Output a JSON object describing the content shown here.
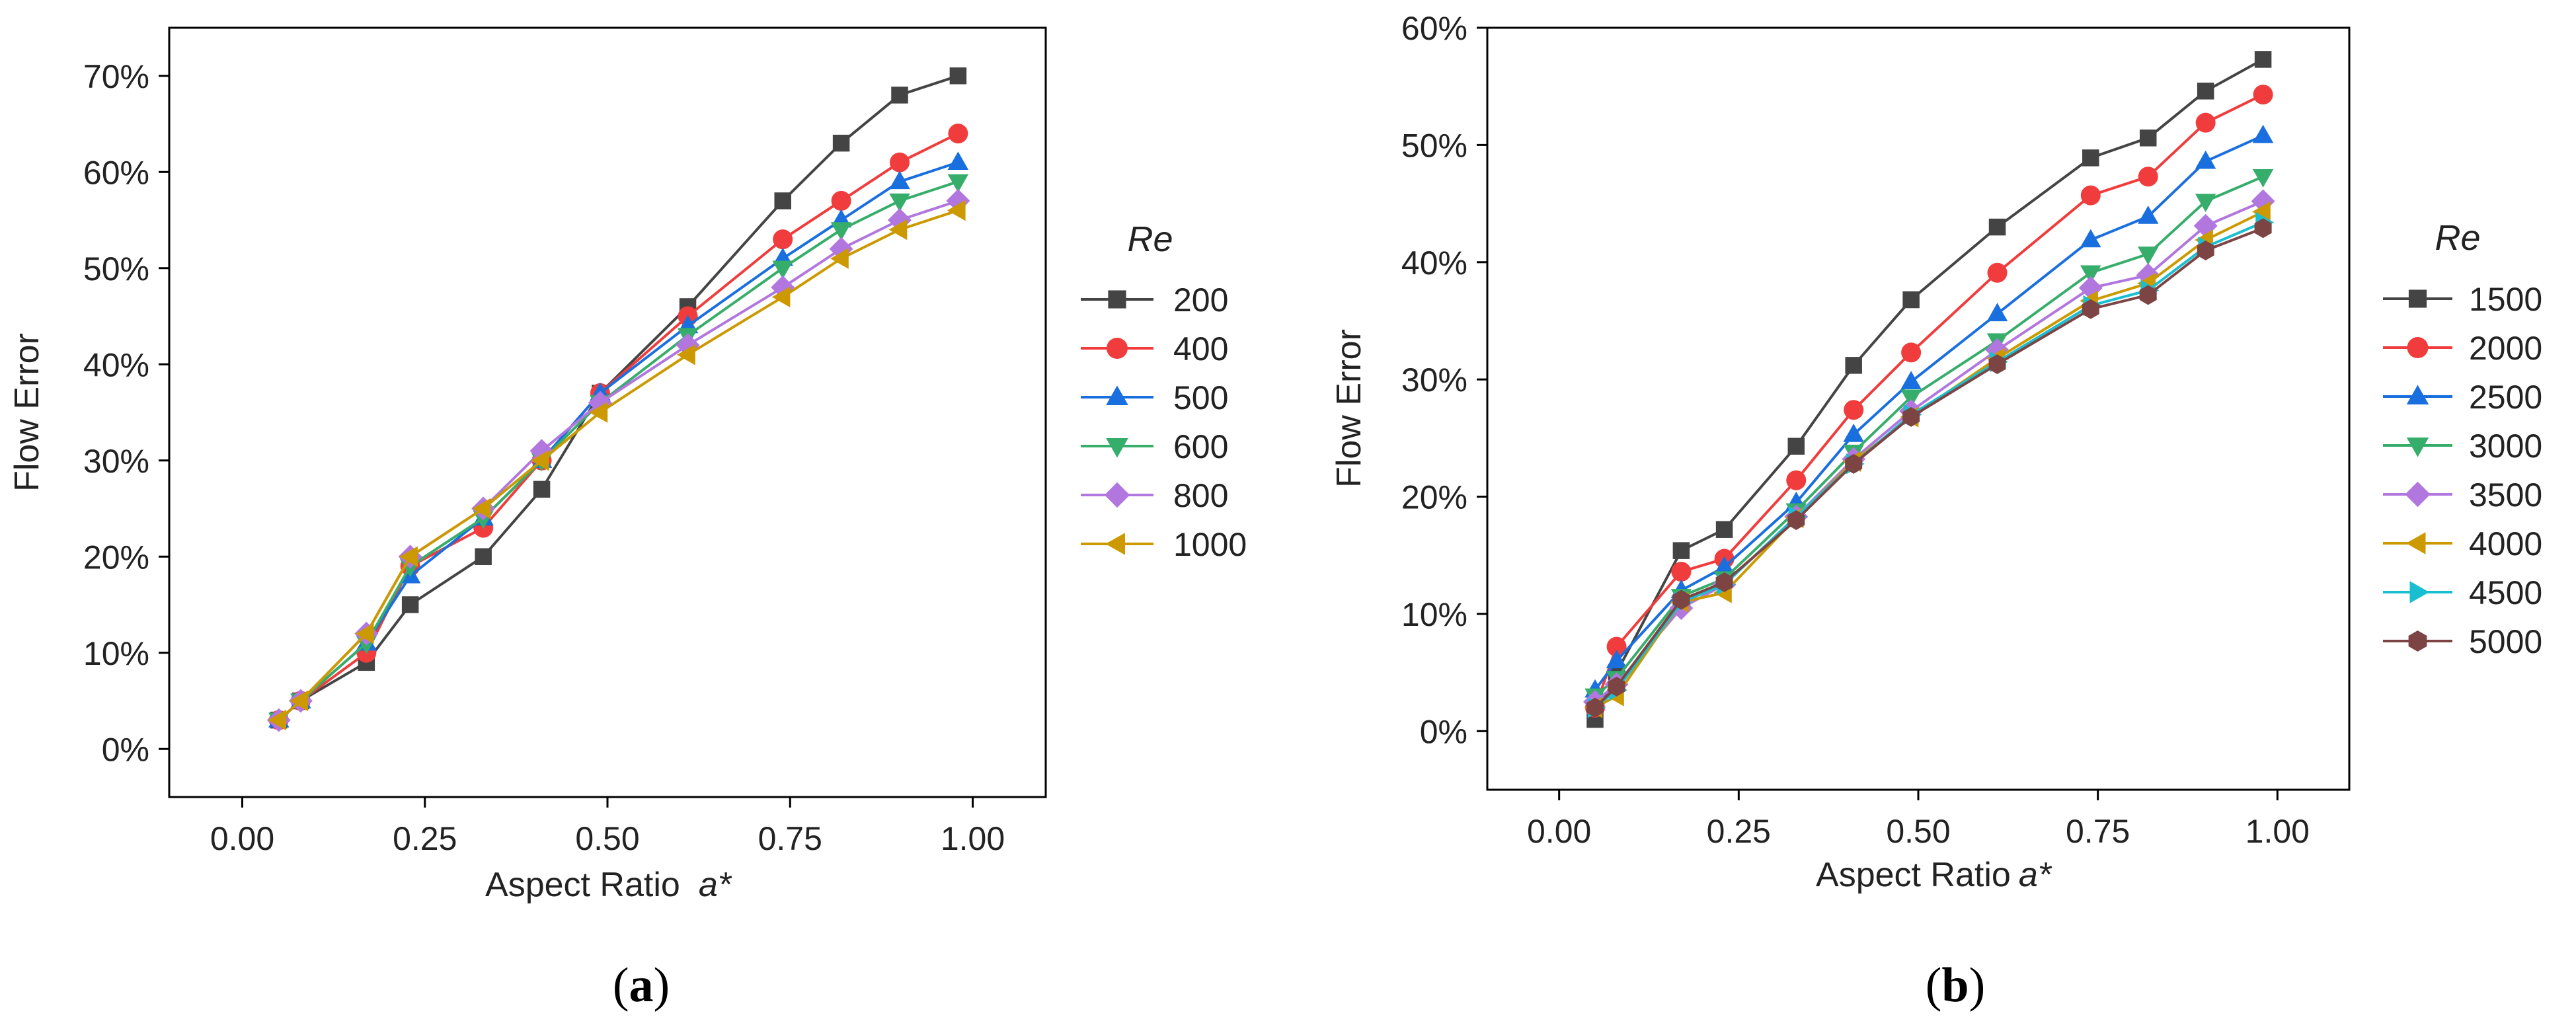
{
  "chart_data": [
    {
      "type": "line",
      "panel_label": "a",
      "xlabel": "Aspect Ratio",
      "xlabel_symbol": "a*",
      "ylabel": "Flow Error",
      "xlim": [
        -0.1,
        1.1
      ],
      "ylim": [
        -0.05,
        0.75
      ],
      "x_ticks": [
        0,
        0.25,
        0.5,
        0.75,
        1.0
      ],
      "x_tick_labels": [
        "0.00",
        "0.25",
        "0.50",
        "0.75",
        "1.00"
      ],
      "y_ticks": [
        0,
        0.1,
        0.2,
        0.3,
        0.4,
        0.5,
        0.6,
        0.7
      ],
      "y_tick_labels": [
        "0%",
        "10%",
        "20%",
        "30%",
        "40%",
        "50%",
        "60%",
        "70%"
      ],
      "legend_title": "Re",
      "legend_position": "right outside",
      "x": [
        0.05,
        0.08,
        0.17,
        0.23,
        0.33,
        0.41,
        0.49,
        0.61,
        0.74,
        0.82,
        0.9,
        0.98
      ],
      "series": [
        {
          "name": "200",
          "color": "#444444",
          "marker": "square",
          "values": [
            0.03,
            0.05,
            0.09,
            0.15,
            0.2,
            0.27,
            0.37,
            0.46,
            0.57,
            0.63,
            0.68,
            0.7
          ]
        },
        {
          "name": "400",
          "color": "#f03c3c",
          "marker": "circle",
          "values": [
            0.03,
            0.05,
            0.1,
            0.19,
            0.23,
            0.3,
            0.37,
            0.45,
            0.53,
            0.57,
            0.61,
            0.64
          ]
        },
        {
          "name": "500",
          "color": "#1a6fdf",
          "marker": "triangle-up",
          "values": [
            0.03,
            0.05,
            0.11,
            0.18,
            0.24,
            0.3,
            0.37,
            0.44,
            0.51,
            0.55,
            0.59,
            0.61
          ]
        },
        {
          "name": "600",
          "color": "#37ad6b",
          "marker": "triangle-down",
          "values": [
            0.03,
            0.05,
            0.11,
            0.19,
            0.24,
            0.3,
            0.36,
            0.43,
            0.5,
            0.54,
            0.57,
            0.59
          ]
        },
        {
          "name": "800",
          "color": "#b177de",
          "marker": "diamond",
          "values": [
            0.03,
            0.05,
            0.12,
            0.2,
            0.25,
            0.31,
            0.36,
            0.42,
            0.48,
            0.52,
            0.55,
            0.57
          ]
        },
        {
          "name": "1000",
          "color": "#cc9900",
          "marker": "triangle-left",
          "values": [
            0.03,
            0.05,
            0.12,
            0.2,
            0.25,
            0.3,
            0.35,
            0.41,
            0.47,
            0.51,
            0.54,
            0.56
          ]
        }
      ]
    },
    {
      "type": "line",
      "panel_label": "b",
      "xlabel": "Aspect Ratio",
      "xlabel_symbol": "a*",
      "ylabel": "Flow Error",
      "xlim": [
        -0.1,
        1.1
      ],
      "ylim": [
        -0.05,
        0.6
      ],
      "x_ticks": [
        0,
        0.25,
        0.5,
        0.75,
        1.0
      ],
      "x_tick_labels": [
        "0.00",
        "0.25",
        "0.50",
        "0.75",
        "1.00"
      ],
      "y_ticks": [
        0,
        0.1,
        0.2,
        0.3,
        0.4,
        0.5,
        0.6
      ],
      "y_tick_labels": [
        "0%",
        "10%",
        "20%",
        "30%",
        "40%",
        "50%",
        "60%"
      ],
      "legend_title": "Re",
      "legend_position": "right outside",
      "x": [
        0.05,
        0.08,
        0.17,
        0.23,
        0.33,
        0.41,
        0.49,
        0.61,
        0.74,
        0.82,
        0.9,
        0.98
      ],
      "series": [
        {
          "name": "1500",
          "color": "#444444",
          "marker": "square",
          "values": [
            0.01,
            0.05,
            0.154,
            0.172,
            0.243,
            0.312,
            0.368,
            0.43,
            0.489,
            0.506,
            0.546,
            0.573
          ]
        },
        {
          "name": "2000",
          "color": "#f03c3c",
          "marker": "circle",
          "values": [
            0.02,
            0.072,
            0.136,
            0.147,
            0.214,
            0.274,
            0.323,
            0.391,
            0.457,
            0.473,
            0.519,
            0.543
          ]
        },
        {
          "name": "2500",
          "color": "#1a6fdf",
          "marker": "triangle-up",
          "values": [
            0.035,
            0.06,
            0.12,
            0.14,
            0.195,
            0.253,
            0.298,
            0.356,
            0.419,
            0.439,
            0.486,
            0.508
          ]
        },
        {
          "name": "3000",
          "color": "#37ad6b",
          "marker": "triangle-down",
          "values": [
            0.03,
            0.045,
            0.115,
            0.13,
            0.188,
            0.238,
            0.285,
            0.333,
            0.391,
            0.407,
            0.452,
            0.473
          ]
        },
        {
          "name": "3500",
          "color": "#b177de",
          "marker": "diamond",
          "values": [
            0.025,
            0.04,
            0.105,
            0.125,
            0.183,
            0.232,
            0.273,
            0.325,
            0.378,
            0.389,
            0.431,
            0.452
          ]
        },
        {
          "name": "4000",
          "color": "#cc9900",
          "marker": "triangle-left",
          "values": [
            0.02,
            0.03,
            0.11,
            0.118,
            0.182,
            0.23,
            0.268,
            0.318,
            0.367,
            0.382,
            0.419,
            0.443
          ]
        },
        {
          "name": "4500",
          "color": "#19bfd0",
          "marker": "triangle-right",
          "values": [
            0.02,
            0.035,
            0.11,
            0.125,
            0.183,
            0.228,
            0.27,
            0.315,
            0.363,
            0.376,
            0.413,
            0.434
          ]
        },
        {
          "name": "5000",
          "color": "#7d4444",
          "marker": "hexagon",
          "values": [
            0.02,
            0.038,
            0.112,
            0.127,
            0.18,
            0.228,
            0.268,
            0.313,
            0.36,
            0.372,
            0.41,
            0.429
          ]
        }
      ]
    }
  ]
}
